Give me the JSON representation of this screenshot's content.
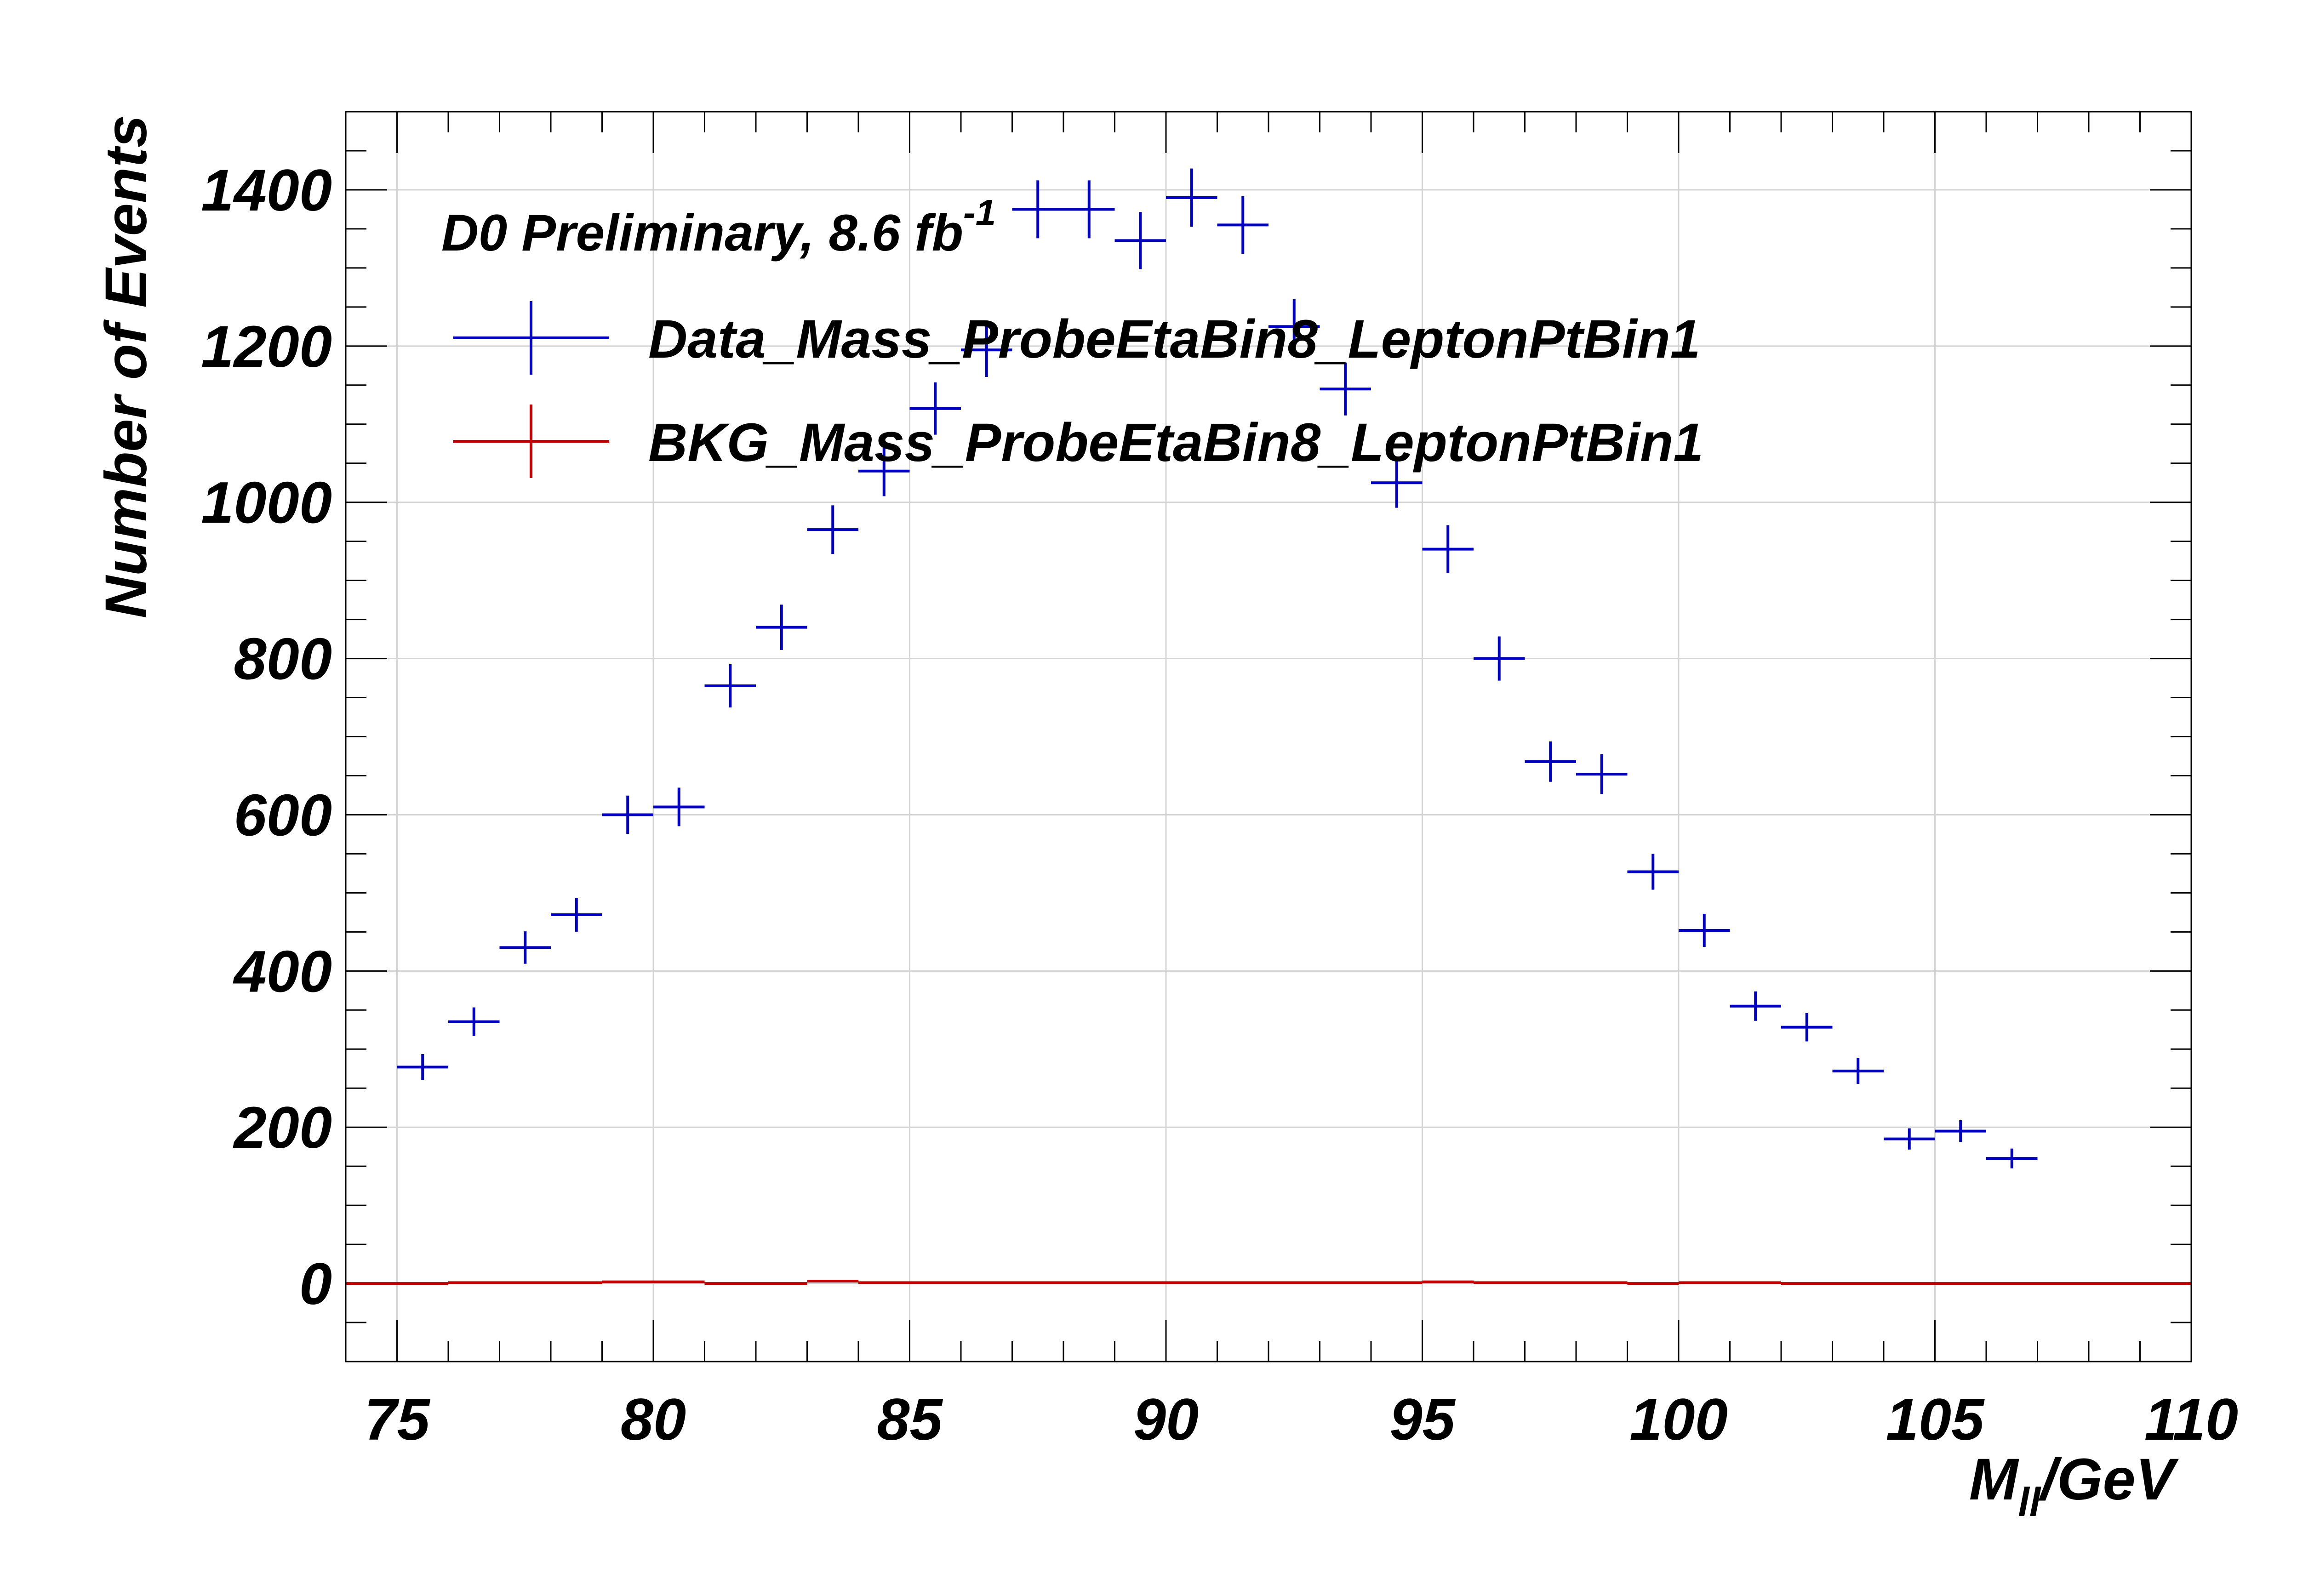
{
  "chart_data": {
    "type": "scatter",
    "annotation": {
      "text": "D0 Preliminary, 8.6 fb",
      "superscript": "-1"
    },
    "xlabel": {
      "main": "M",
      "subscript": "ll",
      "suffix": "/GeV"
    },
    "ylabel": "Number of Events",
    "xlim": [
      74,
      110
    ],
    "ylim": [
      -100,
      1500
    ],
    "xticks": [
      75,
      80,
      85,
      90,
      95,
      100,
      105,
      110
    ],
    "yticks": [
      0,
      200,
      400,
      600,
      800,
      1000,
      1200,
      1400
    ],
    "xtick_labels": [
      "75",
      "80",
      "85",
      "90",
      "95",
      "100",
      "105",
      "110"
    ],
    "ytick_labels": [
      "0",
      "200",
      "400",
      "600",
      "800",
      "1000",
      "1200",
      "1400"
    ],
    "grid": true,
    "legend_position": "top-left",
    "bin_width": 1,
    "series": [
      {
        "name": "Data_Mass_ProbeEtaBin8_LeptonPtBin1",
        "color": "#0000c0",
        "style": "errorbars",
        "x": [
          75.5,
          76.5,
          77.5,
          78.5,
          79.5,
          80.5,
          81.5,
          82.5,
          83.5,
          84.5,
          85.5,
          86.5,
          87.5,
          88.5,
          89.5,
          90.5,
          91.5,
          92.5,
          93.5,
          94.5,
          95.5,
          96.5,
          97.5,
          98.5,
          99.5,
          100.5,
          101.5,
          102.5,
          103.5,
          104.5,
          105.5,
          106.5
        ],
        "values": [
          277,
          335,
          430,
          472,
          600,
          610,
          765,
          840,
          965,
          1040,
          1120,
          1195,
          1375,
          1375,
          1335,
          1390,
          1355,
          1225,
          1145,
          1025,
          940,
          800,
          668,
          652,
          527,
          452,
          355,
          328,
          272,
          185,
          195,
          160
        ]
      },
      {
        "name": "BKG_Mass_ProbeEtaBin8_LeptonPtBin1",
        "color": "#c00000",
        "style": "step",
        "x": [
          74.5,
          75.5,
          76.5,
          77.5,
          78.5,
          79.5,
          80.5,
          81.5,
          82.5,
          83.5,
          84.5,
          85.5,
          86.5,
          87.5,
          88.5,
          89.5,
          90.5,
          91.5,
          92.5,
          93.5,
          94.5,
          95.5,
          96.5,
          97.5,
          98.5,
          99.5,
          100.5,
          101.5,
          102.5,
          103.5,
          104.5,
          105.5,
          106.5,
          107.5,
          108.5,
          109.5
        ],
        "values": [
          0,
          0,
          1,
          1,
          1,
          2,
          2,
          0,
          0,
          3,
          1,
          1,
          1,
          1,
          1,
          1,
          1,
          1,
          1,
          1,
          1,
          2,
          1,
          1,
          1,
          0,
          1,
          1,
          0,
          0,
          0,
          0,
          0,
          0,
          0,
          0
        ]
      }
    ]
  }
}
